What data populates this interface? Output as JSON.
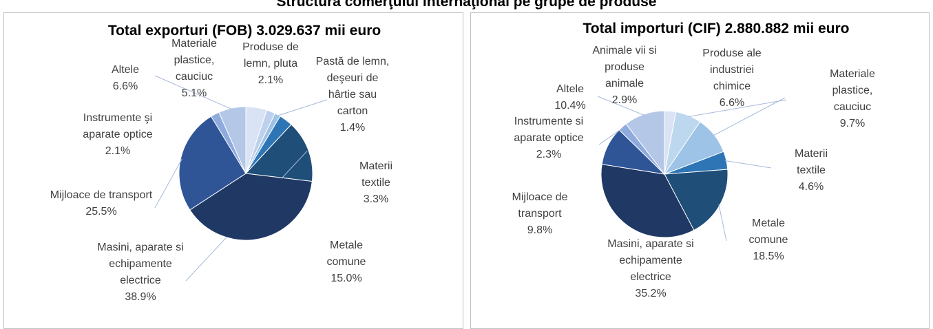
{
  "title": "Structura comerţului internaţional pe grupe de produse",
  "chart_data": [
    {
      "type": "pie",
      "title": "Total exporturi (FOB) 3.029.637 mii euro",
      "categories": [
        "Materiale plastice, cauciuc",
        "Produse de lemn, pluta",
        "Pastă de lemn, deşeuri de hârtie sau carton",
        "Materii textile",
        "Metale comune",
        "Masini, aparate si echipamente electrice",
        "Mijloace de transport",
        "Instrumente şi aparate optice",
        "Altele"
      ],
      "values": [
        5.1,
        2.1,
        1.4,
        3.3,
        15.0,
        38.9,
        25.5,
        2.1,
        6.6
      ],
      "value_labels": [
        "5.1%",
        "2.1%",
        "1.4%",
        "3.3%",
        "15.0%",
        "38.9%",
        "25.5%",
        "2.1%",
        "6.6%"
      ],
      "colors": [
        "#dae3f3",
        "#bdd0ee",
        "#9dc3e6",
        "#2e75b6",
        "#1f4e79",
        "#203864",
        "#2f5597",
        "#8faadc",
        "#b4c7e7"
      ]
    },
    {
      "type": "pie",
      "title": "Total importuri (CIF) 2.880.882 mii euro",
      "categories": [
        "Animale  vii si produse animale",
        "Produse ale industriei chimice",
        "Materiale plastice, cauciuc",
        "Materii textile",
        "Metale comune",
        "Masini, aparate si echipamente electrice",
        "Mijloace de transport",
        "Instrumente si aparate optice",
        "Altele"
      ],
      "values": [
        2.9,
        6.6,
        9.7,
        4.6,
        18.5,
        35.2,
        9.8,
        2.3,
        10.4
      ],
      "value_labels": [
        "2.9%",
        "6.6%",
        "9.7%",
        "4.6%",
        "18.5%",
        "35.2%",
        "9.8%",
        "2.3%",
        "10.4%"
      ],
      "colors": [
        "#dae3f3",
        "#bdd7ee",
        "#9dc3e6",
        "#2e75b6",
        "#1f4e79",
        "#203864",
        "#2f5597",
        "#8faadc",
        "#b4c7e7"
      ]
    }
  ]
}
